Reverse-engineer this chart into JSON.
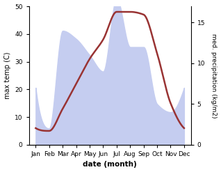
{
  "months": [
    "Jan",
    "Feb",
    "Mar",
    "Apr",
    "May",
    "Jun",
    "Jul",
    "Aug",
    "Sep",
    "Oct",
    "Nov",
    "Dec"
  ],
  "month_positions": [
    0,
    1,
    2,
    3,
    4,
    5,
    6,
    7,
    8,
    9,
    10,
    11
  ],
  "temperature": [
    6,
    5,
    13,
    22,
    31,
    38,
    48,
    48,
    47,
    33,
    15,
    6
  ],
  "precipitation_kg": [
    7,
    2,
    14,
    13,
    11,
    9,
    18,
    12,
    12,
    5,
    4,
    7
  ],
  "temp_color": "#993333",
  "precip_color": "#c5cdf0",
  "ylabel_left": "max temp (C)",
  "ylabel_right": "med. precipitation (kg/m2)",
  "xlabel": "date (month)",
  "ylim_left": [
    0,
    50
  ],
  "ylim_right": [
    0,
    17
  ],
  "background_color": "#ffffff",
  "temp_linewidth": 1.8,
  "figwidth": 3.18,
  "figheight": 2.47,
  "dpi": 100
}
